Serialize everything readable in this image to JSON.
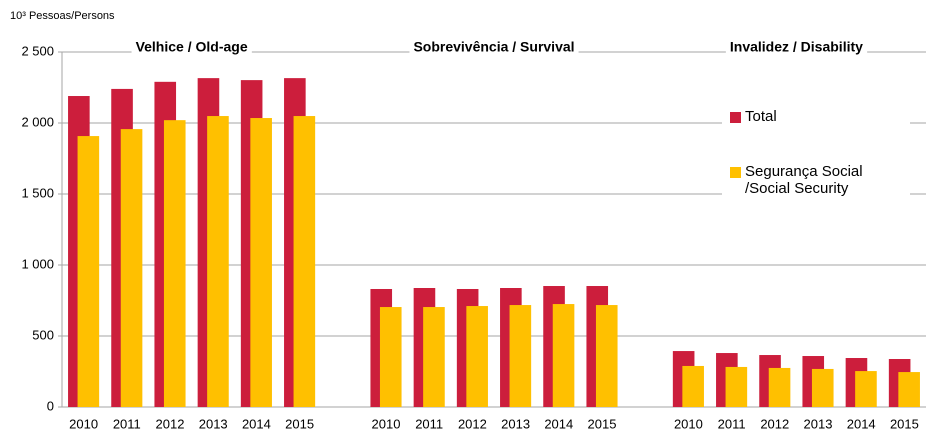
{
  "chart_data": {
    "type": "bar",
    "y_label": "10³ Pessoas/Persons",
    "group_labels": [
      "Velhice / Old-age",
      "Sobrevivência / Survival",
      "Invalidez / Disability"
    ],
    "categories": [
      "2010",
      "2011",
      "2012",
      "2013",
      "2014",
      "2015",
      null,
      "2010",
      "2011",
      "2012",
      "2013",
      "2014",
      "2015",
      null,
      "2010",
      "2011",
      "2012",
      "2013",
      "2014",
      "2015"
    ],
    "series": [
      {
        "name": "Total",
        "color": "#cc1e3c",
        "values": [
          2190,
          2240,
          2290,
          2316,
          2302,
          2316,
          null,
          831,
          838,
          831,
          838,
          852,
          852,
          null,
          394,
          380,
          366,
          359,
          345,
          338
        ]
      },
      {
        "name": "Segurança Social /Social Security",
        "color": "#ffc000",
        "values": [
          1908,
          1957,
          2020,
          2049,
          2035,
          2049,
          null,
          704,
          704,
          711,
          718,
          725,
          718,
          null,
          289,
          282,
          275,
          268,
          253,
          246
        ]
      }
    ],
    "ylim": [
      0,
      2500
    ],
    "yticks": [
      0,
      500,
      {
        "value": 1000,
        "label": "1 000"
      },
      {
        "value": 1500,
        "label": "1 500"
      },
      {
        "value": 2000,
        "label": "2 000"
      },
      {
        "value": 2500,
        "label": "2 500"
      }
    ],
    "grid": true
  }
}
